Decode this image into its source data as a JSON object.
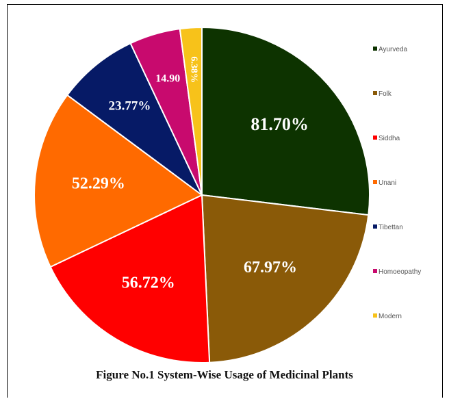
{
  "chart_data": {
    "type": "pie",
    "categories": [
      "Ayurveda",
      "Folk",
      "Siddha",
      "Unani",
      "Tibettan",
      "Homoeopathy",
      "Modern"
    ],
    "values": [
      81.7,
      67.97,
      56.72,
      52.29,
      23.77,
      14.9,
      6.38
    ],
    "data_labels": [
      "81.70%",
      "67.97%",
      "56.72%",
      "52.29%",
      "23.77%",
      "14.90",
      "6.38%"
    ],
    "colors": [
      "#0d3300",
      "#8a5a08",
      "#ff0000",
      "#ff6a00",
      "#061a66",
      "#c80a6e",
      "#f7c21a"
    ],
    "legend_position": "right",
    "title": "Figure No.1  System-Wise Usage of Medicinal Plants"
  }
}
